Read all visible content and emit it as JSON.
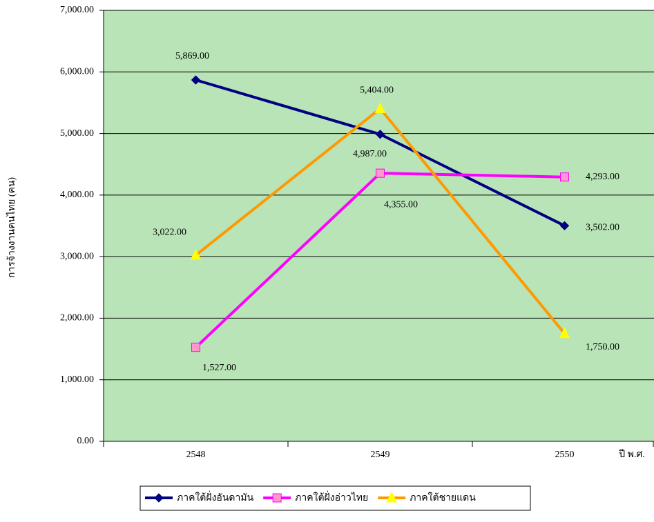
{
  "chart_data": {
    "type": "line",
    "y_axis_label": "การจ้างงานคนไทย (คน)",
    "x_axis_label": "ปี พ.ศ.",
    "categories": [
      "2548",
      "2549",
      "2550"
    ],
    "series": [
      {
        "name": "ภาคใต้ฝั่งอันดามัน",
        "color": "#000080",
        "marker": "diamond",
        "marker_color": "#000080",
        "values": [
          5869,
          4987,
          3502
        ],
        "value_labels": [
          "5,869.00",
          "4,987.00",
          "3,502.00"
        ]
      },
      {
        "name": "ภาคใต้ฝั่งอ่าวไทย",
        "color": "#ff00ff",
        "marker": "square",
        "marker_color": "#ff99cc",
        "values": [
          1527,
          4355,
          4293
        ],
        "value_labels": [
          "1,527.00",
          "4,355.00",
          "4,293.00"
        ]
      },
      {
        "name": "ภาคใต้ชายแดน",
        "color": "#ff9900",
        "marker": "triangle",
        "marker_color": "#ffff00",
        "values": [
          3022,
          5404,
          1750
        ],
        "value_labels": [
          "3,022.00",
          "5,404.00",
          "1,750.00"
        ]
      }
    ],
    "ylim": [
      0,
      7000
    ],
    "yticks": [
      {
        "value": 0,
        "label": "0.00"
      },
      {
        "value": 1000,
        "label": "1,000.00"
      },
      {
        "value": 2000,
        "label": "2,000.00"
      },
      {
        "value": 3000,
        "label": "3,000.00"
      },
      {
        "value": 4000,
        "label": "4,000.00"
      },
      {
        "value": 5000,
        "label": "5,000.00"
      },
      {
        "value": 6000,
        "label": "6,000.00"
      },
      {
        "value": 7000,
        "label": "7,000.00"
      }
    ],
    "grid": true,
    "plot_background": "#b8e4b8",
    "legend": "bottom"
  }
}
